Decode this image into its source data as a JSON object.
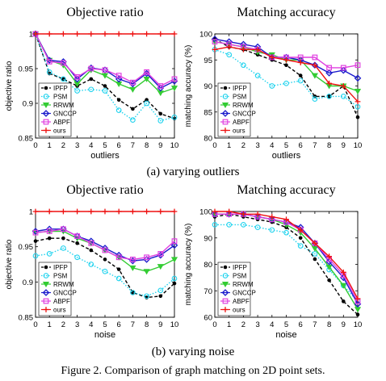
{
  "figure_caption": "Figure 2.  Comparison of graph matching on 2D point sets.",
  "subcaptions": [
    "(a) varying outliers",
    "(b) varying noise"
  ],
  "colors": {
    "IPFP": "#000000",
    "PSM": "#22d3ee",
    "RRWM": "#33cc33",
    "GNCCP": "#1a1acc",
    "ABPF": "#e040e0",
    "ours": "#ee1111"
  },
  "chart_data": [
    {
      "type": "line",
      "title": "Objective ratio",
      "xlabel": "outliers",
      "ylabel": "objective ratio",
      "x": [
        0,
        1,
        2,
        3,
        4,
        5,
        6,
        7,
        8,
        9,
        10
      ],
      "xlim": [
        0,
        10
      ],
      "ylim": [
        0.85,
        1
      ],
      "yticks": [
        0.85,
        0.9,
        0.95,
        1
      ],
      "ytick_labels": [
        "0.85",
        "0.9",
        "0.95",
        "1"
      ],
      "legend_position": "lower-left",
      "series": [
        {
          "name": "IPFP",
          "marker": "dot",
          "dash": "dashed",
          "values": [
            1.0,
            0.943,
            0.935,
            0.925,
            0.935,
            0.925,
            0.905,
            0.892,
            0.905,
            0.885,
            0.878
          ]
        },
        {
          "name": "PSM",
          "marker": "circle",
          "dash": "dotted",
          "values": [
            1.0,
            0.945,
            0.935,
            0.918,
            0.92,
            0.918,
            0.89,
            0.876,
            0.9,
            0.875,
            0.88
          ]
        },
        {
          "name": "RRWM",
          "marker": "triangle",
          "dash": "solid",
          "values": [
            1.0,
            0.962,
            0.955,
            0.928,
            0.948,
            0.94,
            0.928,
            0.92,
            0.935,
            0.915,
            0.922
          ]
        },
        {
          "name": "GNCCP",
          "marker": "diamond",
          "dash": "solid",
          "values": [
            1.0,
            0.962,
            0.96,
            0.935,
            0.951,
            0.948,
            0.935,
            0.928,
            0.943,
            0.922,
            0.932
          ]
        },
        {
          "name": "ABPF",
          "marker": "square",
          "dash": "solid",
          "values": [
            1.0,
            0.96,
            0.958,
            0.938,
            0.95,
            0.948,
            0.94,
            0.93,
            0.945,
            0.925,
            0.935
          ]
        },
        {
          "name": "ours",
          "marker": "plus",
          "dash": "solid",
          "values": [
            1,
            1,
            1,
            1,
            1,
            1,
            1,
            1,
            1,
            1,
            1
          ]
        }
      ]
    },
    {
      "type": "line",
      "title": "Matching accuracy",
      "xlabel": "outliers",
      "ylabel": "matching accuracy (%)",
      "x": [
        0,
        1,
        2,
        3,
        4,
        5,
        6,
        7,
        8,
        9,
        10
      ],
      "xlim": [
        0,
        10
      ],
      "ylim": [
        80,
        100
      ],
      "yticks": [
        80,
        85,
        90,
        95,
        100
      ],
      "ytick_labels": [
        "80",
        "85",
        "90",
        "95",
        "100"
      ],
      "legend_position": "lower-left",
      "series": [
        {
          "name": "IPFP",
          "marker": "dot",
          "dash": "dashed",
          "values": [
            99,
            97.5,
            97,
            96,
            95,
            94,
            92,
            88,
            88,
            90,
            84
          ]
        },
        {
          "name": "PSM",
          "marker": "circle",
          "dash": "dotted",
          "values": [
            97,
            96,
            94,
            92,
            90,
            90.5,
            91,
            87.5,
            88,
            88,
            86
          ]
        },
        {
          "name": "RRWM",
          "marker": "triangle",
          "dash": "solid",
          "values": [
            98.5,
            98,
            97.5,
            96.5,
            96,
            95,
            95,
            92,
            90,
            90,
            89
          ]
        },
        {
          "name": "GNCCP",
          "marker": "diamond",
          "dash": "solid",
          "values": [
            99,
            98.5,
            98,
            97.5,
            95.5,
            95.5,
            95,
            94,
            92.5,
            93,
            91.5
          ]
        },
        {
          "name": "ABPF",
          "marker": "square",
          "dash": "solid",
          "values": [
            98.5,
            98,
            97.5,
            97,
            95.5,
            95.5,
            95.5,
            95.5,
            93.5,
            93.5,
            94
          ]
        },
        {
          "name": "ours",
          "marker": "plus",
          "dash": "solid",
          "values": [
            97,
            97.5,
            97,
            97,
            95.5,
            95,
            94.5,
            94,
            90.5,
            90,
            87
          ]
        }
      ]
    },
    {
      "type": "line",
      "title": "Objective ratio",
      "xlabel": "noise",
      "ylabel": "objective ratio",
      "x": [
        0,
        1,
        2,
        3,
        4,
        5,
        6,
        7,
        8,
        9,
        10
      ],
      "xlim": [
        0,
        10
      ],
      "ylim": [
        0.85,
        1
      ],
      "yticks": [
        0.85,
        0.9,
        0.95,
        1
      ],
      "ytick_labels": [
        "0.85",
        "0.9",
        "0.95",
        "1"
      ],
      "legend_position": "lower-left",
      "series": [
        {
          "name": "IPFP",
          "marker": "dot",
          "dash": "dashed",
          "values": [
            0.958,
            0.962,
            0.962,
            0.955,
            0.945,
            0.932,
            0.918,
            0.885,
            0.878,
            0.88,
            0.898
          ]
        },
        {
          "name": "PSM",
          "marker": "circle",
          "dash": "dotted",
          "values": [
            0.937,
            0.94,
            0.948,
            0.935,
            0.925,
            0.915,
            0.905,
            0.885,
            0.88,
            0.888,
            0.905
          ]
        },
        {
          "name": "RRWM",
          "marker": "triangle",
          "dash": "solid",
          "values": [
            0.97,
            0.972,
            0.972,
            0.962,
            0.955,
            0.945,
            0.935,
            0.92,
            0.915,
            0.922,
            0.932
          ]
        },
        {
          "name": "GNCCP",
          "marker": "diamond",
          "dash": "solid",
          "values": [
            0.972,
            0.975,
            0.975,
            0.965,
            0.958,
            0.948,
            0.938,
            0.93,
            0.932,
            0.938,
            0.952
          ]
        },
        {
          "name": "ABPF",
          "marker": "square",
          "dash": "solid",
          "values": [
            0.97,
            0.972,
            0.975,
            0.965,
            0.955,
            0.945,
            0.935,
            0.932,
            0.935,
            0.94,
            0.958
          ]
        },
        {
          "name": "ours",
          "marker": "plus",
          "dash": "solid",
          "values": [
            1,
            1,
            1,
            1,
            1,
            1,
            1,
            1,
            1,
            1,
            1
          ]
        }
      ]
    },
    {
      "type": "line",
      "title": "Matching accuracy",
      "xlabel": "noise",
      "ylabel": "matching accuracy (%)",
      "x": [
        0,
        1,
        2,
        3,
        4,
        5,
        6,
        7,
        8,
        9,
        10
      ],
      "xlim": [
        0,
        10
      ],
      "ylim": [
        60,
        100
      ],
      "yticks": [
        60,
        70,
        80,
        90,
        100
      ],
      "ytick_labels": [
        "60",
        "70",
        "80",
        "90",
        "100"
      ],
      "legend_position": "lower-left",
      "series": [
        {
          "name": "IPFP",
          "marker": "dot",
          "dash": "dashed",
          "values": [
            98,
            99,
            98,
            97,
            96,
            94,
            90,
            82,
            74,
            66,
            61
          ]
        },
        {
          "name": "PSM",
          "marker": "circle",
          "dash": "dotted",
          "values": [
            95,
            95,
            95,
            94,
            93,
            92,
            87,
            84,
            78,
            72,
            66
          ]
        },
        {
          "name": "RRWM",
          "marker": "triangle",
          "dash": "solid",
          "values": [
            99,
            99,
            99,
            98,
            97,
            95,
            92,
            86,
            79,
            72,
            63
          ]
        },
        {
          "name": "GNCCP",
          "marker": "diamond",
          "dash": "solid",
          "values": [
            99,
            99,
            99,
            98,
            97,
            96,
            94,
            88,
            81,
            75,
            65
          ]
        },
        {
          "name": "ABPF",
          "marker": "square",
          "dash": "solid",
          "values": [
            99,
            99,
            99,
            98,
            97,
            96,
            93,
            88,
            82,
            76,
            66
          ]
        },
        {
          "name": "ours",
          "marker": "plus",
          "dash": "solid",
          "values": [
            100,
            100,
            99,
            99,
            98,
            97,
            93,
            88,
            83,
            77,
            67
          ]
        }
      ]
    }
  ]
}
